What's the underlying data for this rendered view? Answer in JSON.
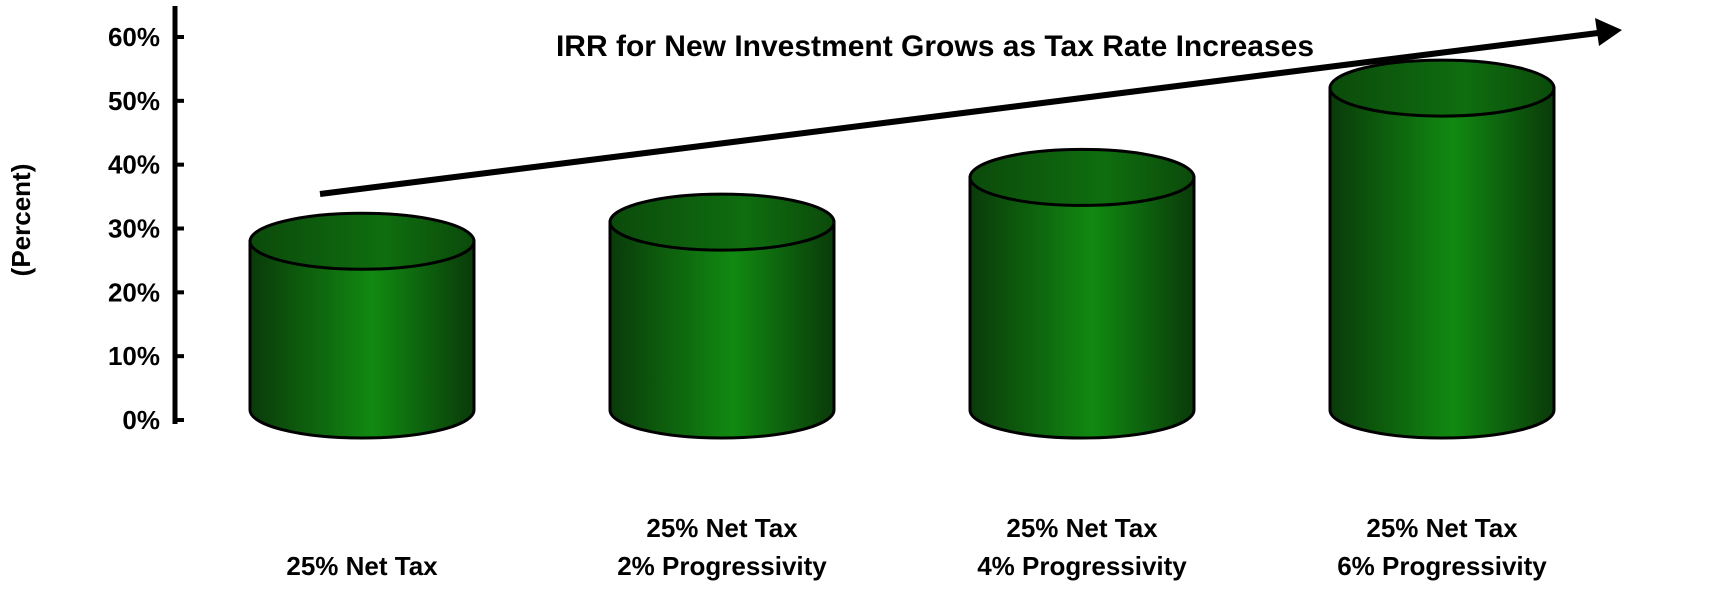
{
  "chart_data": {
    "type": "bar",
    "title": "",
    "xlabel": "",
    "ylabel": "(Percent)",
    "annotation": "IRR for New Investment Grows as Tax Rate Increases",
    "ylim": [
      0,
      60
    ],
    "yticks": [
      "0%",
      "10%",
      "20%",
      "30%",
      "40%",
      "50%",
      "60%"
    ],
    "categories": [
      [
        "25% Net Tax"
      ],
      [
        "25% Net Tax",
        "2% Progressivity"
      ],
      [
        "25% Net Tax",
        "4% Progressivity"
      ],
      [
        "25% Net Tax",
        "6% Progressivity"
      ]
    ],
    "values": [
      28,
      31,
      38,
      52
    ],
    "bar_style": "cylinder",
    "colors": {
      "bar_dark": "#0b3d0b",
      "bar_mid": "#0f6b0f",
      "bar_light": "#118a11",
      "axis": "#000000"
    },
    "grid": false,
    "legend": "none"
  }
}
